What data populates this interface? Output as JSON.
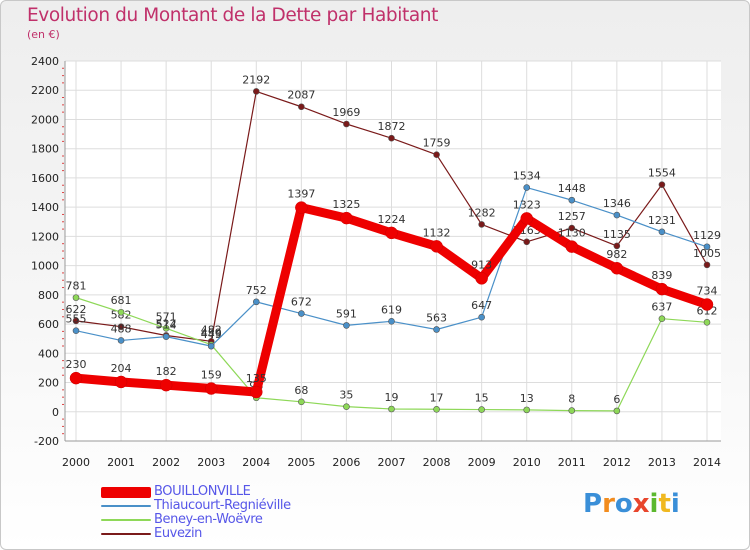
{
  "header": {
    "title": "Evolution du Montant de la Dette par Habitant",
    "subtitle": "(en €)"
  },
  "logo": {
    "text": "Proxiti",
    "letter_colors": [
      "#3a8fd8",
      "#f28c1e",
      "#3a8fd8",
      "#e8452c",
      "#5cb82e",
      "#f0b820",
      "#3a8fd8"
    ]
  },
  "chart_data": {
    "type": "line",
    "x": [
      "2000",
      "2001",
      "2002",
      "2003",
      "2004",
      "2005",
      "2006",
      "2007",
      "2008",
      "2009",
      "2010",
      "2011",
      "2012",
      "2013",
      "2014"
    ],
    "ylim": [
      -200,
      2400
    ],
    "yticks": [
      -200,
      0,
      200,
      400,
      600,
      800,
      1000,
      1200,
      1400,
      1600,
      1800,
      2000,
      2200,
      2400
    ],
    "grid": true,
    "legend_position": "bottom-left",
    "series": [
      {
        "name": "Euvezin",
        "color": "#7a1a1a",
        "width": 1.2,
        "values": [
          622,
          582,
          522,
          482,
          2192,
          2087,
          1969,
          1872,
          1759,
          1282,
          1163,
          1257,
          1135,
          1554,
          1005
        ],
        "labels": [
          "622",
          "582",
          "522",
          "482",
          "2192",
          "2087",
          "1969",
          "1872",
          "1759",
          "1282",
          "1163",
          "1257",
          "1135",
          "1554",
          "1005"
        ]
      },
      {
        "name": "Beney-en-Woëvre",
        "color": "#8ed858",
        "width": 1.2,
        "values": [
          781,
          681,
          571,
          459,
          96,
          68,
          35,
          19,
          17,
          15,
          13,
          8,
          6,
          637,
          612
        ],
        "labels": [
          "781",
          "681",
          "571",
          "459",
          "96",
          "68",
          "35",
          "19",
          "17",
          "15",
          "13",
          "8",
          "6",
          "637",
          "612"
        ]
      },
      {
        "name": "Thiaucourt-Regniéville",
        "color": "#4a90c8",
        "width": 1.2,
        "values": [
          555,
          488,
          514,
          449,
          752,
          672,
          591,
          619,
          563,
          647,
          1534,
          1448,
          1346,
          1231,
          1129
        ],
        "labels": [
          "555",
          "488",
          "514",
          "449",
          "752",
          "672",
          "591",
          "619",
          "563",
          "647",
          "1534",
          "1448",
          "1346",
          "1231",
          "1129"
        ]
      },
      {
        "name": "BOUILLONVILLE",
        "color": "#ee0000",
        "width": 9,
        "values": [
          230,
          204,
          182,
          159,
          135,
          1397,
          1325,
          1224,
          1132,
          913,
          1323,
          1130,
          982,
          839,
          734
        ],
        "labels": [
          "230",
          "204",
          "182",
          "159",
          "135",
          "1397",
          "1325",
          "1224",
          "1132",
          "913",
          "1323",
          "1130",
          "982",
          "839",
          "734"
        ]
      }
    ]
  }
}
